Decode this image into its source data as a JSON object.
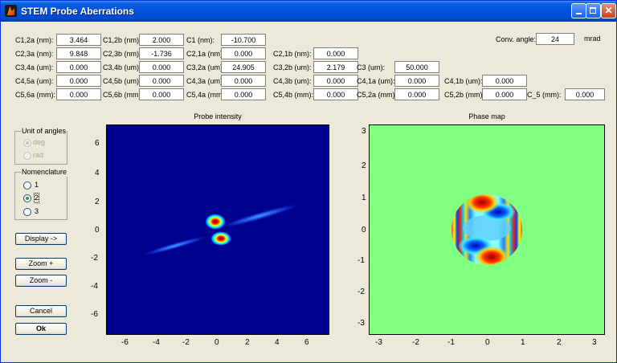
{
  "window": {
    "title": "STEM Probe Aberrations",
    "buttons": {
      "minimize": "",
      "maximize": "",
      "close": "✕"
    }
  },
  "conv_angle": {
    "label": "Conv. angle:",
    "value": "24",
    "unit": "mrad"
  },
  "aberrations": [
    {
      "label": "C1,2a (nm):",
      "value": "3.464"
    },
    {
      "label": "C1,2b (nm):",
      "value": "2.000"
    },
    {
      "label": "C1 (nm):",
      "value": "-10.700"
    },
    {
      "label": "C2,3a (nm):",
      "value": "9.848"
    },
    {
      "label": "C2,3b (nm):",
      "value": "-1.736"
    },
    {
      "label": "C2,1a (nm):",
      "value": "0.000"
    },
    {
      "label": "C2,1b (nm):",
      "value": "0.000"
    },
    {
      "label": "C3,4a (um):",
      "value": "0.000"
    },
    {
      "label": "C3,4b (um):",
      "value": "0.000"
    },
    {
      "label": "C3,2a (um):",
      "value": "24.905"
    },
    {
      "label": "C3,2b (um):",
      "value": "2.179"
    },
    {
      "label": "C3 (um):",
      "value": "50.000"
    },
    {
      "label": "C4,5a (um):",
      "value": "0.000"
    },
    {
      "label": "C4,5b (um):",
      "value": "0.000"
    },
    {
      "label": "C4,3a (um):",
      "value": "0.000"
    },
    {
      "label": "C4,3b (um):",
      "value": "0.000"
    },
    {
      "label": "C4,1a (um):",
      "value": "0.000"
    },
    {
      "label": "C4,1b (um):",
      "value": "0.000"
    },
    {
      "label": "C5,6a (mm):",
      "value": "0.000"
    },
    {
      "label": "C5,6b (mm):",
      "value": "0.000"
    },
    {
      "label": "C5,4a (mm):",
      "value": "0.000"
    },
    {
      "label": "C5,4b (mm):",
      "value": "0.000"
    },
    {
      "label": "C5,2a (mm):",
      "value": "0.000"
    },
    {
      "label": "C5,2b (mm):",
      "value": "0.000"
    },
    {
      "label": "C_5 (mm):",
      "value": "0.000"
    }
  ],
  "unit_of_angles": {
    "title": "Unit of angles",
    "options": [
      {
        "label": "deg",
        "selected": true
      },
      {
        "label": "rad",
        "selected": false
      }
    ],
    "enabled": false
  },
  "nomenclature": {
    "title": "Nomenclature",
    "options": [
      {
        "label": "1",
        "selected": false
      },
      {
        "label": "2",
        "selected": true
      },
      {
        "label": "3",
        "selected": false
      }
    ]
  },
  "buttons": {
    "display": "Display ->",
    "zoom_in": "Zoom +",
    "zoom_out": "Zoom -",
    "cancel": "Cancel",
    "ok": "Ok"
  },
  "probe_plot": {
    "title": "Probe intensity",
    "x_ticks": [
      "-6",
      "-4",
      "-2",
      "0",
      "2",
      "4",
      "6"
    ],
    "y_ticks": [
      "6",
      "4",
      "2",
      "0",
      "-2",
      "-4",
      "-6"
    ],
    "background": "#00008f"
  },
  "phase_plot": {
    "title": "Phase map",
    "x_ticks": [
      "-3",
      "-2",
      "-1",
      "0",
      "1",
      "2",
      "3"
    ],
    "y_ticks": [
      "3",
      "2",
      "1",
      "0",
      "-1",
      "-2",
      "-3"
    ],
    "background": "#80ff80"
  }
}
